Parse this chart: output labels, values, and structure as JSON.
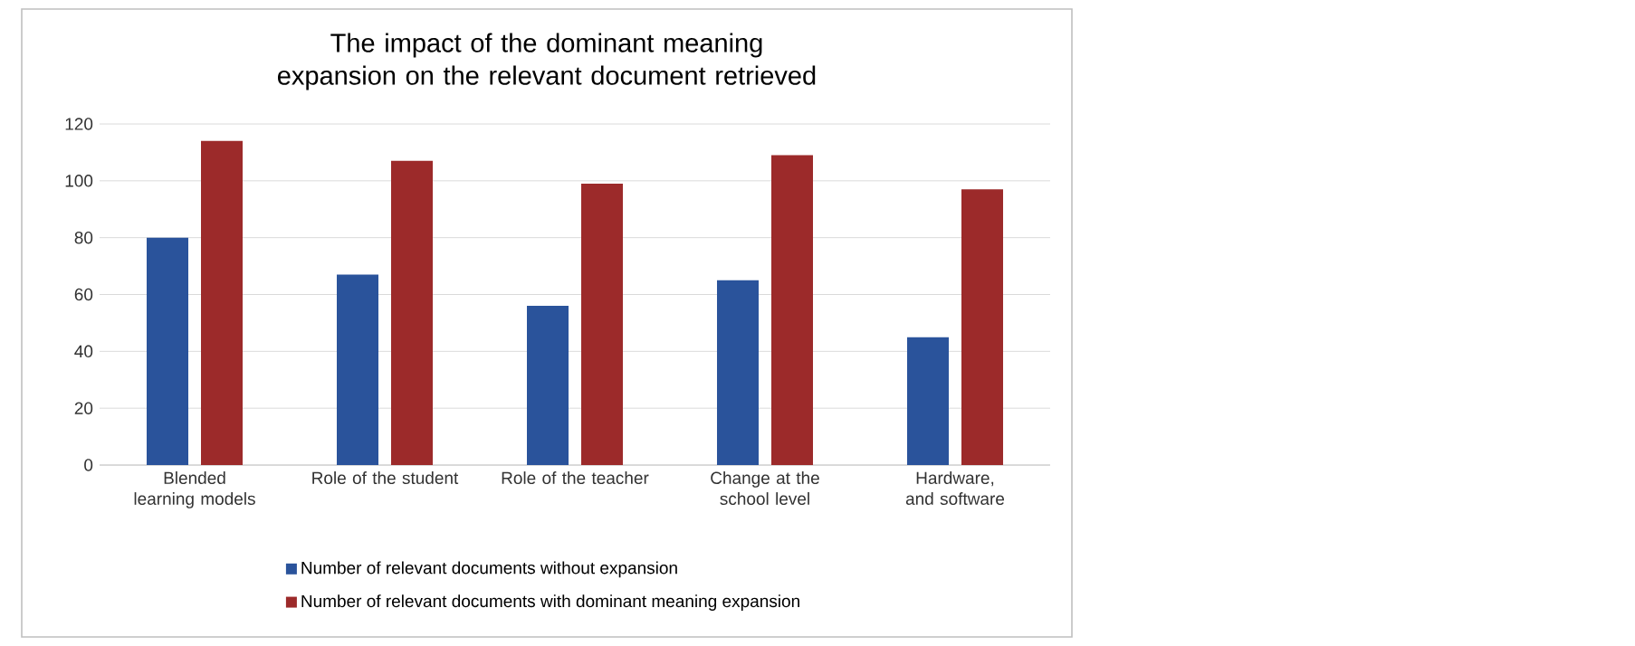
{
  "chart_data": {
    "type": "bar",
    "title": "The impact of the dominant meaning expansion on the relevant document retrieved",
    "categories": [
      "Blended learning models",
      "Role of the student",
      "Role of the teacher",
      "Change at the school level",
      "Hardware, and software"
    ],
    "series": [
      {
        "name": "Number of relevant documents without expansion",
        "color": "#2a539b",
        "values": [
          80,
          67,
          56,
          65,
          45
        ]
      },
      {
        "name": "Number of relevant documents with dominant meaning expansion",
        "color": "#9c2a2a",
        "values": [
          114,
          107,
          99,
          109,
          97
        ]
      }
    ],
    "ylim": [
      0,
      120
    ],
    "yticks": [
      0,
      20,
      40,
      60,
      80,
      100,
      120
    ],
    "grid": "y",
    "legend": "bottom"
  }
}
